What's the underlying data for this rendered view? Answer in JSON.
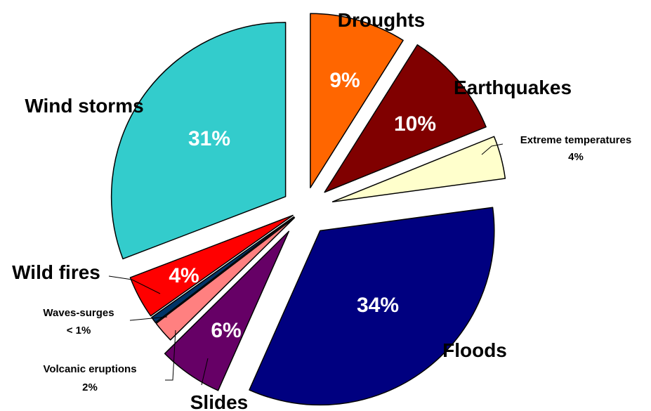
{
  "chart_data": {
    "type": "pie",
    "title": "",
    "start_angle_deg": -90,
    "slices": [
      {
        "name": "Droughts",
        "value": 9,
        "label": "9%",
        "color": "#ff6600",
        "explode": 32
      },
      {
        "name": "Earthquakes",
        "value": 10,
        "label": "10%",
        "color": "#800000",
        "explode": 38
      },
      {
        "name": "Extreme temperatures",
        "value": 4,
        "label": "4%",
        "color": "#ffffcc",
        "explode": 42
      },
      {
        "name": "Floods",
        "value": 34,
        "label": "34%",
        "color": "#000080",
        "explode": 38
      },
      {
        "name": "Slides",
        "value": 6,
        "label": "6%",
        "color": "#660066",
        "explode": 38
      },
      {
        "name": "Volcanic eruptions",
        "value": 2,
        "label": "2%",
        "color": "#ff8080",
        "explode": 18
      },
      {
        "name": "Waves-surges",
        "value": 0.6,
        "label": "< 1%",
        "color": "#003366",
        "explode": 18
      },
      {
        "name": "Wild fires",
        "value": 4,
        "label": "4%",
        "color": "#ff0000",
        "explode": 18
      },
      {
        "name": "Wind storms",
        "value": 31,
        "label": "31%",
        "color": "#33cccc",
        "explode": 32
      }
    ]
  }
}
